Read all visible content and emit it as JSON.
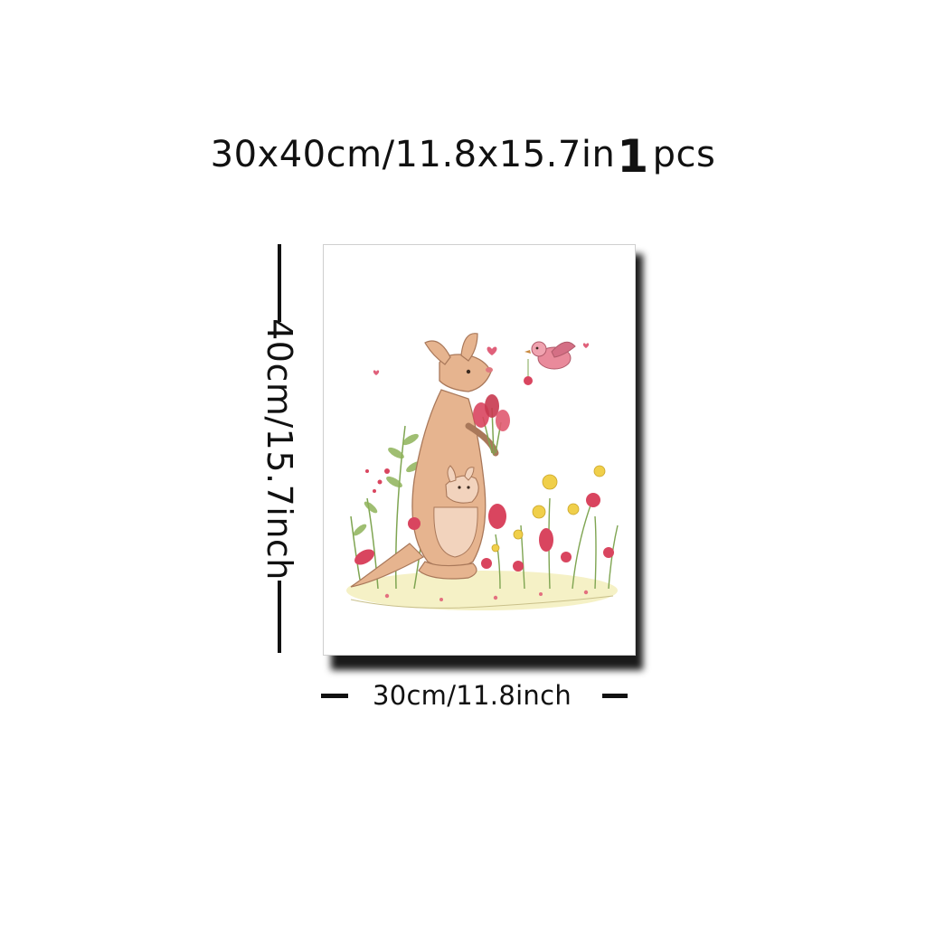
{
  "headline": {
    "size_text": "30x40cm/11.8x15.7in",
    "quantity": "1",
    "unit": "pcs"
  },
  "dimensions": {
    "height_label": "40cm/15.7inch",
    "width_label": "30cm/11.8inch"
  },
  "artwork": {
    "subject": "kangaroo-with-joey-and-flowers-illustration",
    "colors": {
      "kangaroo": "#e6b48f",
      "kangaroo_outline": "#a9785a",
      "belly": "#f2d3bd",
      "flower_red": "#d9455f",
      "flower_yellow": "#f0cf4a",
      "leaf_green": "#8fb35a",
      "bird_pink": "#e98a9b",
      "ground": "#f3eeb8"
    }
  }
}
